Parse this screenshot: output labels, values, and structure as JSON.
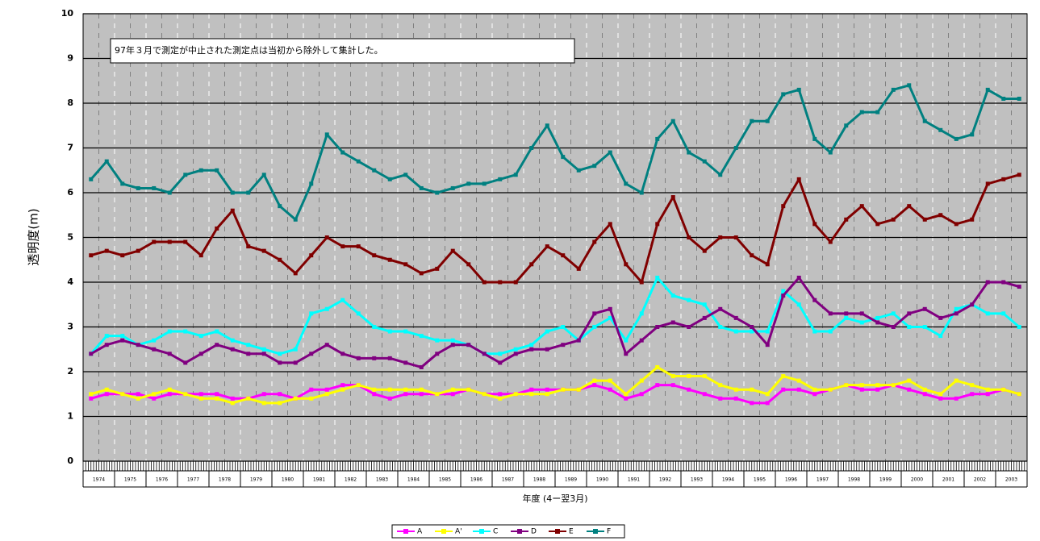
{
  "chart_data": {
    "type": "line",
    "annotation": "97年３月で測定が中止された測定点は当初から除外して集計した。",
    "y_label": "透明度(m)",
    "x_label": "年度 (4ー翌3月)",
    "categories": [
      "1974",
      null,
      "1975",
      null,
      "1976",
      null,
      "1977",
      null,
      "1978",
      null,
      "1979",
      null,
      "1980",
      null,
      "1981",
      null,
      "1982",
      null,
      "1983",
      null,
      "1984",
      null,
      "1985",
      null,
      "1986",
      null,
      "1987",
      null,
      "1988",
      null,
      "1989",
      null,
      "1990",
      null,
      "1991",
      null,
      "1992",
      null,
      "1993",
      null,
      "1994",
      null,
      "1995",
      null,
      "1996",
      null,
      "1997",
      null,
      "1998",
      null,
      "1999",
      null,
      "2000",
      null,
      "2001",
      null,
      "2002",
      null,
      "2003",
      null
    ],
    "ylim": [
      0,
      10
    ],
    "yticks": [
      0,
      1,
      2,
      3,
      4,
      5,
      6,
      7,
      8,
      9,
      10
    ],
    "grid": true,
    "series": [
      {
        "name": "A",
        "color": "#ff00ff",
        "values": [
          1.4,
          1.5,
          1.5,
          1.5,
          1.4,
          1.5,
          1.5,
          1.5,
          1.5,
          1.4,
          1.4,
          1.5,
          1.5,
          1.4,
          1.6,
          1.6,
          1.7,
          1.7,
          1.5,
          1.4,
          1.5,
          1.5,
          1.5,
          1.5,
          1.6,
          1.5,
          1.5,
          1.5,
          1.6,
          1.6,
          1.6,
          1.6,
          1.7,
          1.6,
          1.4,
          1.5,
          1.7,
          1.7,
          1.6,
          1.5,
          1.4,
          1.4,
          1.3,
          1.3,
          1.6,
          1.6,
          1.5,
          1.6,
          1.7,
          1.6,
          1.6,
          1.7,
          1.6,
          1.5,
          1.4,
          1.4,
          1.5,
          1.5,
          1.6,
          1.5
        ]
      },
      {
        "name": "A'",
        "color": "#ffff00",
        "values": [
          1.5,
          1.6,
          1.5,
          1.4,
          1.5,
          1.6,
          1.5,
          1.4,
          1.4,
          1.3,
          1.4,
          1.3,
          1.3,
          1.4,
          1.4,
          1.5,
          1.6,
          1.7,
          1.6,
          1.6,
          1.6,
          1.6,
          1.5,
          1.6,
          1.6,
          1.5,
          1.4,
          1.5,
          1.5,
          1.5,
          1.6,
          1.6,
          1.8,
          1.8,
          1.5,
          1.8,
          2.1,
          1.9,
          1.9,
          1.9,
          1.7,
          1.6,
          1.6,
          1.5,
          1.9,
          1.8,
          1.6,
          1.6,
          1.7,
          1.7,
          1.7,
          1.7,
          1.8,
          1.6,
          1.5,
          1.8,
          1.7,
          1.6,
          1.6,
          1.5
        ]
      },
      {
        "name": "C",
        "color": "#00ffff",
        "values": [
          2.4,
          2.8,
          2.8,
          2.6,
          2.7,
          2.9,
          2.9,
          2.8,
          2.9,
          2.7,
          2.6,
          2.5,
          2.4,
          2.5,
          3.3,
          3.4,
          3.6,
          3.3,
          3.0,
          2.9,
          2.9,
          2.8,
          2.7,
          2.7,
          2.6,
          2.4,
          2.4,
          2.5,
          2.6,
          2.9,
          3.0,
          2.7,
          3.0,
          3.2,
          2.7,
          3.3,
          4.1,
          3.7,
          3.6,
          3.5,
          3.0,
          2.9,
          2.9,
          2.9,
          3.8,
          3.5,
          2.9,
          2.9,
          3.2,
          3.1,
          3.2,
          3.3,
          3.0,
          3.0,
          2.8,
          3.4,
          3.5,
          3.3,
          3.3,
          3.0
        ]
      },
      {
        "name": "D",
        "color": "#800080",
        "values": [
          2.4,
          2.6,
          2.7,
          2.6,
          2.5,
          2.4,
          2.2,
          2.4,
          2.6,
          2.5,
          2.4,
          2.4,
          2.2,
          2.2,
          2.4,
          2.6,
          2.4,
          2.3,
          2.3,
          2.3,
          2.2,
          2.1,
          2.4,
          2.6,
          2.6,
          2.4,
          2.2,
          2.4,
          2.5,
          2.5,
          2.6,
          2.7,
          3.3,
          3.4,
          2.4,
          2.7,
          3.0,
          3.1,
          3.0,
          3.2,
          3.4,
          3.2,
          3.0,
          2.6,
          3.7,
          4.1,
          3.6,
          3.3,
          3.3,
          3.3,
          3.1,
          3.0,
          3.3,
          3.4,
          3.2,
          3.3,
          3.5,
          4.0,
          4.0,
          3.9
        ]
      },
      {
        "name": "E",
        "color": "#800000",
        "values": [
          4.6,
          4.7,
          4.6,
          4.7,
          4.9,
          4.9,
          4.9,
          4.6,
          5.2,
          5.6,
          4.8,
          4.7,
          4.5,
          4.2,
          4.6,
          5.0,
          4.8,
          4.8,
          4.6,
          4.5,
          4.4,
          4.2,
          4.3,
          4.7,
          4.4,
          4.0,
          4.0,
          4.0,
          4.4,
          4.8,
          4.6,
          4.3,
          4.9,
          5.3,
          4.4,
          4.0,
          5.3,
          5.9,
          5.0,
          4.7,
          5.0,
          5.0,
          4.6,
          4.4,
          5.7,
          6.3,
          5.3,
          4.9,
          5.4,
          5.7,
          5.3,
          5.4,
          5.7,
          5.4,
          5.5,
          5.3,
          5.4,
          6.2,
          6.3,
          6.4
        ]
      },
      {
        "name": "F",
        "color": "#008080",
        "values": [
          6.3,
          6.7,
          6.2,
          6.1,
          6.1,
          6.0,
          6.4,
          6.5,
          6.5,
          6.0,
          6.0,
          6.4,
          5.7,
          5.4,
          6.2,
          7.3,
          6.9,
          6.7,
          6.5,
          6.3,
          6.4,
          6.1,
          6.0,
          6.1,
          6.2,
          6.2,
          6.3,
          6.4,
          7.0,
          7.5,
          6.8,
          6.5,
          6.6,
          6.9,
          6.2,
          6.0,
          7.2,
          7.6,
          6.9,
          6.7,
          6.4,
          7.0,
          7.6,
          7.6,
          8.2,
          8.3,
          7.2,
          6.9,
          7.5,
          7.8,
          7.8,
          8.3,
          8.4,
          7.6,
          7.4,
          7.2,
          7.3,
          8.3,
          8.1,
          8.1
        ]
      }
    ]
  }
}
